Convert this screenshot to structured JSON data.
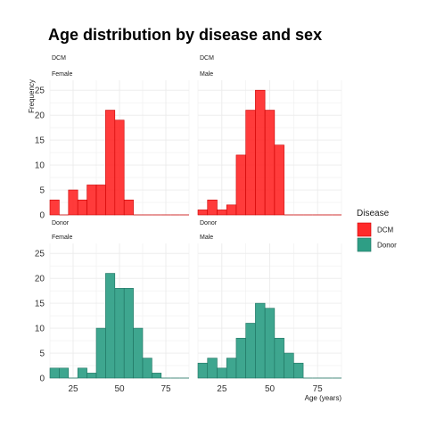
{
  "chart_data": {
    "type": "bar",
    "title": "Age distribution by disease and sex",
    "xlabel": "Age (years)",
    "ylabel": "Frequency",
    "xlim": [
      12.5,
      87.5
    ],
    "ylim": [
      0,
      27
    ],
    "x_ticks": [
      25,
      50,
      75
    ],
    "y_ticks": [
      0,
      5,
      10,
      15,
      20,
      25
    ],
    "bin_width": 5,
    "bin_centers": [
      15,
      20,
      25,
      30,
      35,
      40,
      45,
      50,
      55,
      60,
      65,
      70,
      75,
      80,
      85
    ],
    "grid": true,
    "legend": {
      "title": "Disease",
      "position": "right",
      "items": [
        {
          "label": "DCM",
          "color": "#ff2a2a"
        },
        {
          "label": "Donor",
          "color": "#2e9e85"
        }
      ]
    },
    "colors": {
      "DCM": "#ff2a2a",
      "DCM_edge": "#cc0000",
      "Donor": "#2e9e85",
      "Donor_edge": "#1f7361"
    },
    "panels": [
      {
        "disease": "DCM",
        "sex": "Female",
        "strip1": "DCM",
        "strip2": "Female",
        "values": [
          3,
          0,
          5,
          3,
          6,
          6,
          21,
          19,
          3,
          0,
          0,
          0,
          0,
          0,
          0
        ]
      },
      {
        "disease": "DCM",
        "sex": "Male",
        "strip1": "DCM",
        "strip2": "Male",
        "values": [
          1,
          3,
          1,
          2,
          12,
          21,
          25,
          21,
          14,
          0,
          0,
          0,
          0,
          0,
          0
        ]
      },
      {
        "disease": "Donor",
        "sex": "Female",
        "strip1": "Donor",
        "strip2": "Female",
        "values": [
          2,
          2,
          0,
          2,
          1,
          10,
          21,
          18,
          18,
          10,
          4,
          1,
          0,
          0,
          0
        ]
      },
      {
        "disease": "Donor",
        "sex": "Male",
        "strip1": "Donor",
        "strip2": "Male",
        "values": [
          3,
          4,
          2,
          4,
          8,
          11,
          15,
          14,
          8,
          5,
          3,
          0,
          0,
          0,
          0
        ]
      }
    ]
  }
}
